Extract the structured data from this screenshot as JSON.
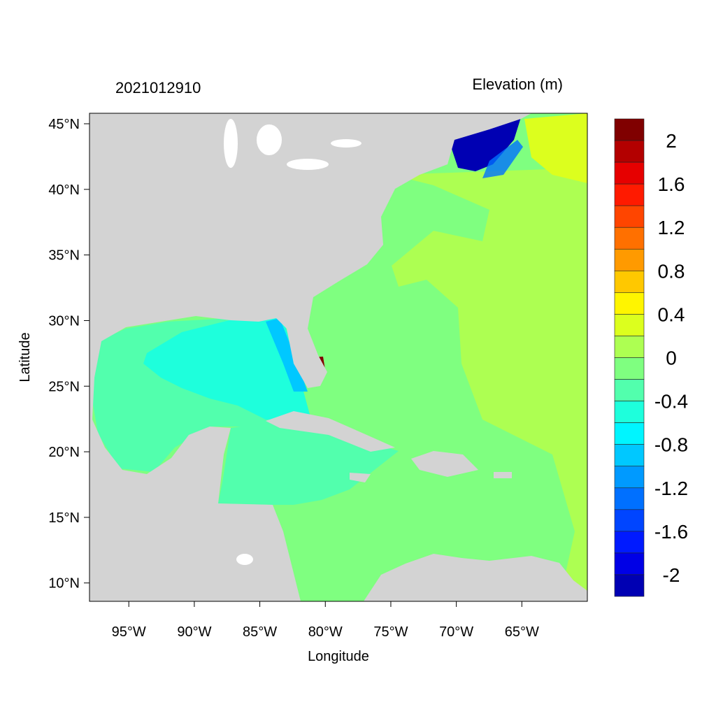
{
  "chart_data": {
    "type": "heatmap",
    "title_left": "2021012910",
    "title_right": "Elevation (m)",
    "xlabel": "Longitude",
    "ylabel": "Latitude",
    "xlim": [
      -98,
      -60
    ],
    "ylim": [
      8.6,
      45.8
    ],
    "x_ticks": [
      -95,
      -90,
      -85,
      -80,
      -75,
      -70,
      -65
    ],
    "x_tick_labels": [
      "95°W",
      "90°W",
      "85°W",
      "80°W",
      "75°W",
      "70°W",
      "65°W"
    ],
    "y_ticks": [
      45,
      40,
      35,
      30,
      25,
      20,
      15,
      10
    ],
    "y_tick_labels": [
      "45°N",
      "40°N",
      "35°N",
      "30°N",
      "25°N",
      "20°N",
      "15°N",
      "10°N"
    ],
    "land_color": "#d3d3d3",
    "colorbar": {
      "levels": [
        2,
        1.8,
        1.6,
        1.4,
        1.2,
        1.0,
        0.8,
        0.6,
        0.4,
        0.2,
        0,
        -0.2,
        -0.4,
        -0.6,
        -0.8,
        -1.0,
        -1.2,
        -1.4,
        -1.6,
        -1.8,
        -2
      ],
      "labels": [
        "2",
        "1.6",
        "1.2",
        "0.8",
        "0.4",
        "0",
        "-0.4",
        "-0.8",
        "-1.2",
        "-1.6",
        "-2"
      ],
      "label_values": [
        2,
        1.6,
        1.2,
        0.8,
        0.4,
        0,
        -0.4,
        -0.8,
        -1.2,
        -1.6,
        -2
      ],
      "colors": [
        "#800000",
        "#b30000",
        "#e60000",
        "#ff1a00",
        "#ff4500",
        "#ff7000",
        "#ff9a00",
        "#ffc800",
        "#fff500",
        "#dcff1e",
        "#adff52",
        "#7fff80",
        "#52ffad",
        "#1effdc",
        "#00f5ff",
        "#00c8ff",
        "#009aff",
        "#0070ff",
        "#0045ff",
        "#001aff",
        "#0000e6",
        "#0000b3"
      ]
    }
  }
}
